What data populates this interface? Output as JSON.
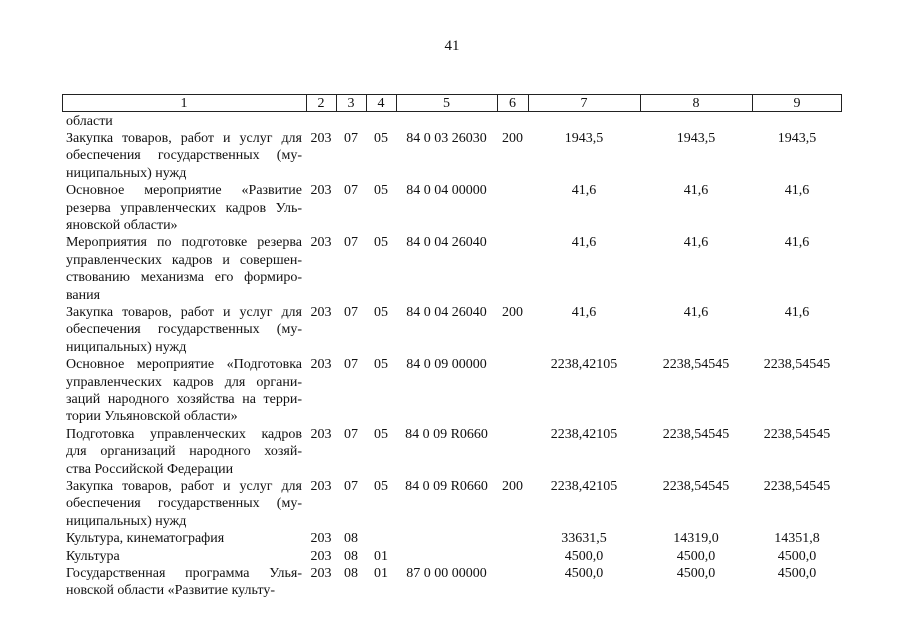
{
  "page_number": "41",
  "table": {
    "header": [
      "1",
      "2",
      "3",
      "4",
      "5",
      "6",
      "7",
      "8",
      "9"
    ],
    "rows": [
      {
        "name": [
          "области"
        ],
        "cells": [
          null,
          null,
          null,
          null,
          null,
          null,
          null,
          null
        ]
      },
      {
        "name": [
          "Закупка товаров, работ и услуг для",
          "обеспечения государственных (му-",
          "ниципальных) нужд"
        ],
        "cells": [
          "203",
          "07",
          "05",
          "84 0 03 26030",
          "200",
          "1943,5",
          "1943,5",
          "1943,5"
        ]
      },
      {
        "name": [
          "Основное мероприятие «Развитие",
          "резерва управленческих кадров Уль-",
          "яновской области»"
        ],
        "cells": [
          "203",
          "07",
          "05",
          "84 0 04 00000",
          null,
          "41,6",
          "41,6",
          "41,6"
        ]
      },
      {
        "name": [
          "Мероприятия по подготовке резерва",
          "управленческих кадров и совершен-",
          "ствованию механизма его формиро-",
          "вания"
        ],
        "cells": [
          "203",
          "07",
          "05",
          "84 0 04 26040",
          null,
          "41,6",
          "41,6",
          "41,6"
        ]
      },
      {
        "name": [
          "Закупка товаров, работ и услуг для",
          "обеспечения государственных (му-",
          "ниципальных) нужд"
        ],
        "cells": [
          "203",
          "07",
          "05",
          "84 0 04 26040",
          "200",
          "41,6",
          "41,6",
          "41,6"
        ]
      },
      {
        "name": [
          "Основное мероприятие «Подготовка",
          "управленческих кадров для органи-",
          "заций народного хозяйства на терри-",
          "тории Ульяновской области»"
        ],
        "cells": [
          "203",
          "07",
          "05",
          "84 0 09 00000",
          null,
          "2238,42105",
          "2238,54545",
          "2238,54545"
        ]
      },
      {
        "name": [
          "Подготовка управленческих кадров",
          "для организаций народного хозяй-",
          "ства Российской Федерации"
        ],
        "cells": [
          "203",
          "07",
          "05",
          "84 0 09 R0660",
          null,
          "2238,42105",
          "2238,54545",
          "2238,54545"
        ]
      },
      {
        "name": [
          "Закупка товаров, работ и услуг для",
          "обеспечения государственных (му-",
          "ниципальных) нужд"
        ],
        "cells": [
          "203",
          "07",
          "05",
          "84 0 09 R0660",
          "200",
          "2238,42105",
          "2238,54545",
          "2238,54545"
        ]
      },
      {
        "name": [
          "Культура, кинематография"
        ],
        "cells": [
          "203",
          "08",
          null,
          null,
          null,
          "33631,5",
          "14319,0",
          "14351,8"
        ]
      },
      {
        "name": [
          "Культура"
        ],
        "cells": [
          "203",
          "08",
          "01",
          null,
          null,
          "4500,0",
          "4500,0",
          "4500,0"
        ]
      },
      {
        "name": [
          "Государственная программа Улья-",
          "новской области «Развитие культу-"
        ],
        "cells": [
          "203",
          "08",
          "01",
          "87 0 00 00000",
          null,
          "4500,0",
          "4500,0",
          "4500,0"
        ]
      }
    ]
  }
}
